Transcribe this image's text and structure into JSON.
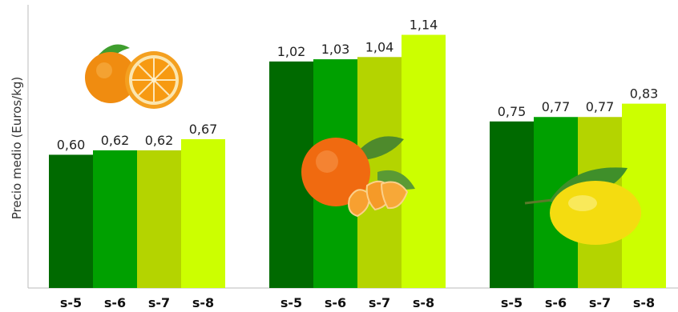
{
  "chart_data": {
    "type": "bar",
    "ylabel": "Precio medio (Euros/kg)",
    "ylim": [
      0,
      1.25
    ],
    "groups": [
      {
        "icon": "orange-fruit-icon",
        "categories": [
          "s-5",
          "s-6",
          "s-7",
          "s-8"
        ],
        "values": [
          0.6,
          0.62,
          0.62,
          0.67
        ],
        "labels": [
          "0,60",
          "0,62",
          "0,62",
          "0,67"
        ]
      },
      {
        "icon": "mandarin-fruit-icon",
        "categories": [
          "s-5",
          "s-6",
          "s-7",
          "s-8"
        ],
        "values": [
          1.02,
          1.03,
          1.04,
          1.14
        ],
        "labels": [
          "1,02",
          "1,03",
          "1,04",
          "1,14"
        ]
      },
      {
        "icon": "lemon-fruit-icon",
        "categories": [
          "s-5",
          "s-6",
          "s-7",
          "s-8"
        ],
        "values": [
          0.75,
          0.77,
          0.77,
          0.83
        ],
        "labels": [
          "0,75",
          "0,77",
          "0,77",
          "0,83"
        ]
      }
    ],
    "bar_colors": [
      "#006a00",
      "#00a000",
      "#b4d400",
      "#ccff00"
    ],
    "grid": false
  }
}
